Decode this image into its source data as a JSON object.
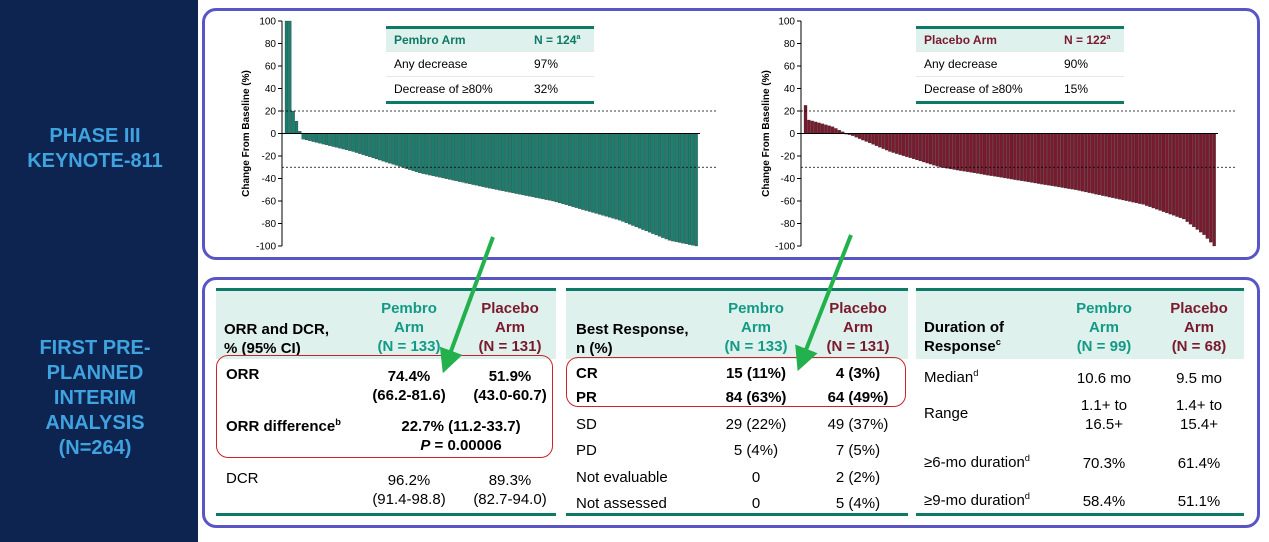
{
  "side_labels": {
    "phase": "PHASE III\nKEYNOTE-811",
    "interim": "FIRST PRE-\nPLANNED\nINTERIM\nANALYSIS\n(N=264)"
  },
  "colors": {
    "pembro": "#1a7f6e",
    "placebo": "#7a1a2e",
    "frame": "#5a55c4",
    "highlight": "#c8242c",
    "arrow": "#22b14c",
    "background": "#0d2451"
  },
  "chart_data": [
    {
      "type": "bar",
      "ylabel": "Change From Baseline (%)",
      "ylim": [
        -100,
        100
      ],
      "yticks": [
        100,
        80,
        60,
        40,
        20,
        0,
        -20,
        -40,
        -60,
        -80,
        -100
      ],
      "reference_lines": [
        20,
        -30
      ],
      "n_bars": 124,
      "anchors": [
        [
          0,
          100
        ],
        [
          1,
          100
        ],
        [
          2,
          20
        ],
        [
          3,
          11
        ],
        [
          4,
          2
        ],
        [
          5,
          -5
        ],
        [
          20,
          -16
        ],
        [
          40,
          -35
        ],
        [
          60,
          -48
        ],
        [
          80,
          -60
        ],
        [
          100,
          -77
        ],
        [
          115,
          -95
        ],
        [
          123,
          -100
        ]
      ]
    },
    {
      "type": "bar",
      "ylabel": "Change From Baseline (%)",
      "ylim": [
        -100,
        100
      ],
      "yticks": [
        100,
        80,
        60,
        40,
        20,
        0,
        -20,
        -40,
        -60,
        -80,
        -100
      ],
      "reference_lines": [
        20,
        -30
      ],
      "n_bars": 122,
      "anchors": [
        [
          0,
          25
        ],
        [
          1,
          12
        ],
        [
          8,
          6
        ],
        [
          12,
          0
        ],
        [
          14,
          -2
        ],
        [
          25,
          -16
        ],
        [
          40,
          -30
        ],
        [
          60,
          -40
        ],
        [
          80,
          -50
        ],
        [
          100,
          -63
        ],
        [
          112,
          -76
        ],
        [
          118,
          -90
        ],
        [
          121,
          -100
        ]
      ]
    }
  ],
  "pembro_summary": {
    "header_arm": "Pembro Arm",
    "header_n": "N = 124",
    "header_sup": "a",
    "rows": [
      {
        "label": "Any decrease",
        "value": "97%"
      },
      {
        "label": "Decrease of ≥80%",
        "value": "32%"
      }
    ]
  },
  "placebo_summary": {
    "header_arm": "Placebo Arm",
    "header_n": "N = 122",
    "header_sup": "a",
    "rows": [
      {
        "label": "Any decrease",
        "value": "90%"
      },
      {
        "label": "Decrease of ≥80%",
        "value": "15%"
      }
    ]
  },
  "orr_table": {
    "header": {
      "col0": "ORR and DCR,\n% (95% CI)",
      "col1": "Pembro\nArm\n(N = 133)",
      "col2": "Placebo\nArm\n(N = 131)"
    },
    "orr": {
      "label": "ORR",
      "pembro": "74.4%\n(66.2-81.6)",
      "placebo": "51.9%\n(43.0-60.7)"
    },
    "diff": {
      "label": "ORR difference",
      "sup": "b",
      "value": "22.7% (11.2-33.7)",
      "p_label": "P",
      "p_value": " = 0.00006"
    },
    "dcr": {
      "label": "DCR",
      "pembro": "96.2%\n(91.4-98.8)",
      "placebo": "89.3%\n(82.7-94.0)"
    }
  },
  "best_response": {
    "header": {
      "col0": "Best Response,\nn (%)",
      "col1": "Pembro\nArm\n(N = 133)",
      "col2": "Placebo\nArm\n(N = 131)"
    },
    "rows": [
      {
        "label": "CR",
        "pembro": "15 (11%)",
        "placebo": "4 (3%)"
      },
      {
        "label": "PR",
        "pembro": "84 (63%)",
        "placebo": "64 (49%)"
      },
      {
        "label": "SD",
        "pembro": "29 (22%)",
        "placebo": "49 (37%)"
      },
      {
        "label": "PD",
        "pembro": "5 (4%)",
        "placebo": "7 (5%)"
      },
      {
        "label": "Not evaluable",
        "pembro": "0",
        "placebo": "2 (2%)"
      },
      {
        "label": "Not assessed",
        "pembro": "0",
        "placebo": "5 (4%)"
      }
    ]
  },
  "duration": {
    "header": {
      "col0": "Duration of\nResponse",
      "col0_sup": "c",
      "col1": "Pembro\nArm\n(N = 99)",
      "col2": "Placebo\nArm\n(N = 68)"
    },
    "rows": [
      {
        "label": "Median",
        "sup": "d",
        "pembro": "10.6 mo",
        "placebo": "9.5 mo"
      },
      {
        "label": "Range",
        "sup": "",
        "pembro": "1.1+ to\n16.5+",
        "placebo": "1.4+ to\n15.4+"
      },
      {
        "label": "≥6-mo duration",
        "sup": "d",
        "pembro": "70.3%",
        "placebo": "61.4%"
      },
      {
        "label": "≥9-mo duration",
        "sup": "d",
        "pembro": "58.4%",
        "placebo": "51.1%"
      }
    ]
  }
}
